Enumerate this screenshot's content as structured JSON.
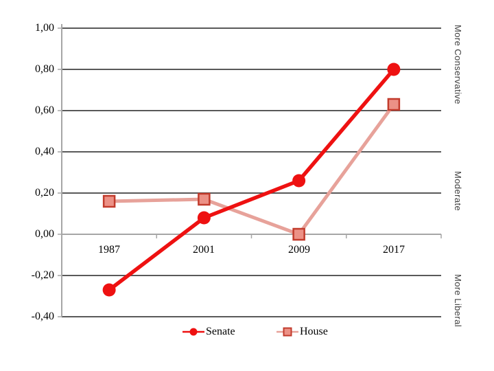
{
  "chart_data": {
    "type": "line",
    "title": "",
    "xlabel": "",
    "ylabel": "",
    "categories": [
      "1987",
      "2001",
      "2009",
      "2017"
    ],
    "series": [
      {
        "name": "Senate",
        "marker": "circle",
        "line_color": "#ee1111",
        "marker_fill": "#ee1111",
        "marker_border": "#ee1111",
        "values": [
          -0.27,
          0.08,
          0.26,
          0.8
        ]
      },
      {
        "name": "House",
        "marker": "square",
        "line_color": "#e7a29a",
        "marker_fill": "#ec9186",
        "marker_border": "#c23b2c",
        "values": [
          0.16,
          0.17,
          0.0,
          0.63
        ]
      }
    ],
    "ylim": [
      -0.4,
      1.0
    ],
    "ytick_step": 0.2,
    "ytick_labels": [
      "1,00",
      "0,80",
      "0,60",
      "0,40",
      "0,20",
      "0,00",
      "-0,20",
      "-0,40"
    ],
    "right_axis_labels": [
      "More Conservative",
      "Moderate",
      "More Liberal"
    ],
    "grid": "horizontal",
    "legend_position": "bottom",
    "colors": {
      "gridline": "#595959",
      "axis": "#a6a6a6",
      "tick_label": "#000000",
      "side_label": "#404040",
      "background": "#ffffff"
    }
  }
}
